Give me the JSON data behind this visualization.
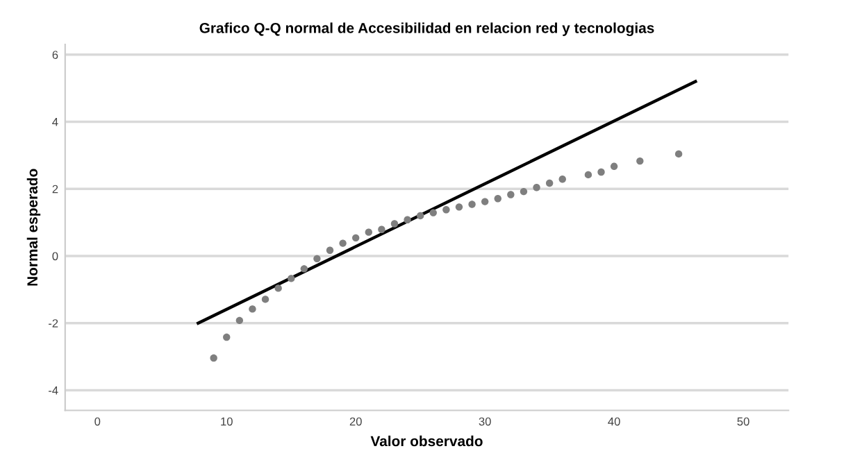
{
  "chart_data": {
    "type": "scatter",
    "title": "Grafico Q-Q normal de Accesibilidad en relacion red y tecnologias",
    "xlabel": "Valor observado",
    "ylabel": "Normal esperado",
    "series": [
      {
        "marker": "circle",
        "color": "#7f7f7f",
        "x": [
          9,
          10,
          11,
          12,
          13,
          14,
          15,
          16,
          17,
          18,
          19,
          20,
          21,
          22,
          23,
          24,
          25,
          26,
          27,
          28,
          29,
          30,
          31,
          32,
          33,
          34,
          35,
          36,
          38,
          39,
          40,
          42,
          45
        ],
        "values": [
          -3.04,
          -2.42,
          -1.92,
          -1.58,
          -1.29,
          -0.96,
          -0.67,
          -0.38,
          -0.08,
          0.17,
          0.38,
          0.54,
          0.71,
          0.79,
          0.96,
          1.08,
          1.2,
          1.29,
          1.38,
          1.46,
          1.54,
          1.62,
          1.71,
          1.83,
          1.92,
          2.04,
          2.17,
          2.29,
          2.42,
          2.5,
          2.67,
          2.83,
          3.04
        ]
      },
      {
        "type": "line",
        "color": "#000000",
        "x": [
          7.8,
          46.3
        ],
        "values": [
          -2.0,
          5.2
        ]
      }
    ],
    "xlim": [
      -2.5,
      53.5
    ],
    "ylim": [
      -4.6,
      6.3
    ],
    "xticks": [
      0,
      10,
      20,
      30,
      40,
      50
    ],
    "yticks": [
      -4,
      -2,
      0,
      2,
      4,
      6
    ],
    "grid": "y"
  }
}
